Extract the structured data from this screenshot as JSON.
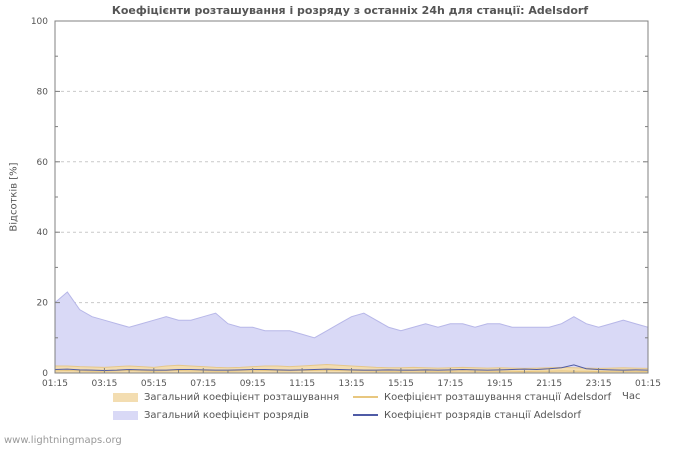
{
  "footer": "www.lightningmaps.org",
  "chart_data": {
    "type": "area",
    "title": "Коефіцієнти розташування і розряду з останніх 24h для станції: Adelsdorf",
    "ylabel": "Відсотків  [%]",
    "xlabel": "Час",
    "ylim": [
      0,
      100
    ],
    "yticks": [
      0,
      20,
      40,
      60,
      80,
      100
    ],
    "xticklabels": [
      "01:15",
      "03:15",
      "05:15",
      "07:15",
      "09:15",
      "11:15",
      "13:15",
      "15:15",
      "17:15",
      "19:15",
      "21:15",
      "23:15",
      "01:15"
    ],
    "grid": true,
    "legend_position": "bottom",
    "draw_order": [
      1,
      0,
      2,
      3
    ],
    "series": [
      {
        "name": "Загальний коефіцієнт розташування",
        "style": "area",
        "color": "#f3ddb1",
        "edge": "#e5c78c",
        "values": [
          2,
          2,
          1.8,
          1.7,
          1.6,
          1.8,
          2,
          1.8,
          1.6,
          2,
          2.2,
          2,
          1.8,
          1.6,
          1.5,
          1.6,
          1.8,
          2,
          2,
          1.8,
          2,
          2.2,
          2.4,
          2.2,
          2,
          1.8,
          1.6,
          1.5,
          1.5,
          1.6,
          1.5,
          1.4,
          1.5,
          1.6,
          1.5,
          1.4,
          1.5,
          1.4,
          1.3,
          1.4,
          1.5,
          1.6,
          1.5,
          1.4,
          1.3,
          1.4,
          1.5,
          1.4,
          1.3
        ]
      },
      {
        "name": "Загальний коефіцієнт розрядів",
        "style": "area",
        "color": "#d9d9f6",
        "edge": "#b7b7e8",
        "values": [
          20,
          23,
          18,
          16,
          15,
          14,
          13,
          14,
          15,
          16,
          15,
          15,
          16,
          17,
          14,
          13,
          13,
          12,
          12,
          12,
          11,
          10,
          12,
          14,
          16,
          17,
          15,
          13,
          12,
          13,
          14,
          13,
          14,
          14,
          13,
          14,
          14,
          13,
          13,
          13,
          13,
          14,
          16,
          14,
          13,
          14,
          15,
          14,
          13
        ]
      },
      {
        "name": "Коефіцієнт розташування станції Adelsdorf",
        "style": "line",
        "color": "#e8c77f",
        "values": [
          0.6,
          0.7,
          0.6,
          0.5,
          0.5,
          0.6,
          0.7,
          0.6,
          0.5,
          0.6,
          0.7,
          0.6,
          0.6,
          0.5,
          0.5,
          0.6,
          0.6,
          0.7,
          0.6,
          0.6,
          0.7,
          0.7,
          0.8,
          0.7,
          0.6,
          0.6,
          0.5,
          0.5,
          0.5,
          0.6,
          0.5,
          0.5,
          0.5,
          0.6,
          0.5,
          0.5,
          0.5,
          0.5,
          0.4,
          0.5,
          0.5,
          0.6,
          0.5,
          0.5,
          0.4,
          0.5,
          0.5,
          0.5,
          0.4
        ]
      },
      {
        "name": "Коефіцієнт розрядів станції Adelsdorf",
        "style": "line",
        "color": "#4f5ba6",
        "values": [
          1,
          1.1,
          0.9,
          0.8,
          0.7,
          0.8,
          1,
          0.9,
          0.8,
          0.8,
          1,
          1,
          0.9,
          0.8,
          0.8,
          0.9,
          1,
          1,
          0.9,
          0.8,
          0.9,
          1,
          1.1,
          1,
          0.9,
          0.8,
          0.8,
          0.9,
          0.8,
          0.8,
          0.9,
          0.8,
          0.9,
          1,
          0.9,
          0.8,
          0.9,
          1,
          1.1,
          1,
          1.2,
          1.5,
          2.3,
          1.2,
          1,
          0.9,
          0.8,
          0.9,
          0.8
        ]
      }
    ]
  }
}
